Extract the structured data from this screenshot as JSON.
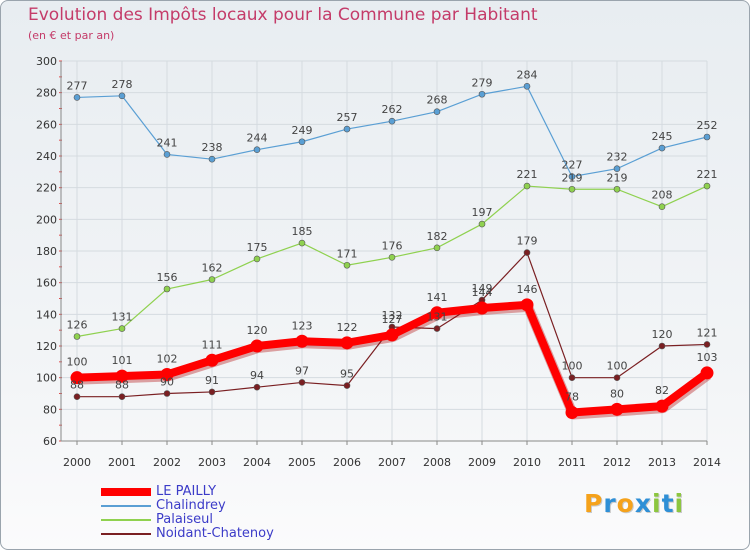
{
  "title": "Evolution des Impôts locaux pour la Commune par Habitant",
  "subtitle": "(en € et par an)",
  "logo": {
    "letters": [
      "P",
      "r",
      "o",
      "x",
      "i",
      "t",
      "i"
    ],
    "colors": [
      "#f5a21b",
      "#2e8fd6",
      "#f5a21b",
      "#2e8fd6",
      "#8cc63f",
      "#2e8fd6",
      "#8cc63f"
    ]
  },
  "chart_data": {
    "type": "line",
    "x": [
      "2000",
      "2001",
      "2002",
      "2003",
      "2004",
      "2005",
      "2006",
      "2007",
      "2008",
      "2009",
      "2010",
      "2011",
      "2012",
      "2013",
      "2014"
    ],
    "ylim": [
      60,
      300
    ],
    "yticks": [
      60,
      80,
      100,
      120,
      140,
      160,
      180,
      200,
      220,
      240,
      260,
      280,
      300
    ],
    "grid": true,
    "legend_position": "bottom-left",
    "series": [
      {
        "name": "LE PAILLY",
        "color": "#ff0000",
        "emphasis": true,
        "values": [
          100,
          101,
          102,
          111,
          120,
          123,
          122,
          127,
          141,
          144,
          146,
          78,
          80,
          82,
          103
        ]
      },
      {
        "name": "Chalindrey",
        "color": "#5a9fd4",
        "emphasis": false,
        "values": [
          277,
          278,
          241,
          238,
          244,
          249,
          257,
          262,
          268,
          279,
          284,
          227,
          232,
          245,
          252
        ]
      },
      {
        "name": "Palaiseul",
        "color": "#8fd14f",
        "emphasis": false,
        "values": [
          126,
          131,
          156,
          162,
          175,
          185,
          171,
          176,
          182,
          197,
          221,
          219,
          219,
          208,
          221
        ]
      },
      {
        "name": "Noidant-Chatenoy",
        "color": "#7a1f22",
        "emphasis": false,
        "values": [
          88,
          88,
          90,
          91,
          94,
          97,
          95,
          132,
          131,
          149,
          179,
          100,
          100,
          120,
          121
        ]
      }
    ]
  }
}
